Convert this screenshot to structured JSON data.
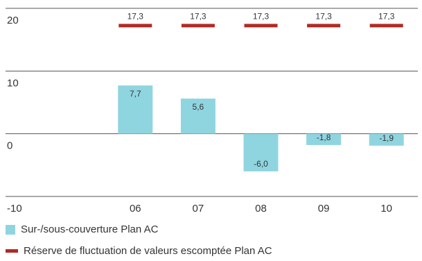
{
  "chart_data": {
    "type": "bar",
    "categories": [
      "06",
      "07",
      "08",
      "09",
      "10"
    ],
    "y_ticks": [
      "20",
      "10",
      "0",
      "-10"
    ],
    "ylim": [
      -10,
      20
    ],
    "series": [
      {
        "name": "Sur-/sous-couverture Plan AC",
        "kind": "bar",
        "color": "#8fd5e0",
        "values": [
          7.7,
          5.6,
          -6.0,
          -1.8,
          -1.9
        ],
        "labels": [
          "7,7",
          "5,6",
          "-6,0",
          "-1,8",
          "-1,9"
        ]
      },
      {
        "name": "Réserve de fluctuation de valeurs escomptée Plan AC",
        "kind": "marker",
        "color": "#b02a25",
        "values": [
          17.3,
          17.3,
          17.3,
          17.3,
          17.3
        ],
        "labels": [
          "17,3",
          "17,3",
          "17,3",
          "17,3",
          "17,3"
        ]
      }
    ],
    "grid": true,
    "legend_position": "bottom-left"
  }
}
